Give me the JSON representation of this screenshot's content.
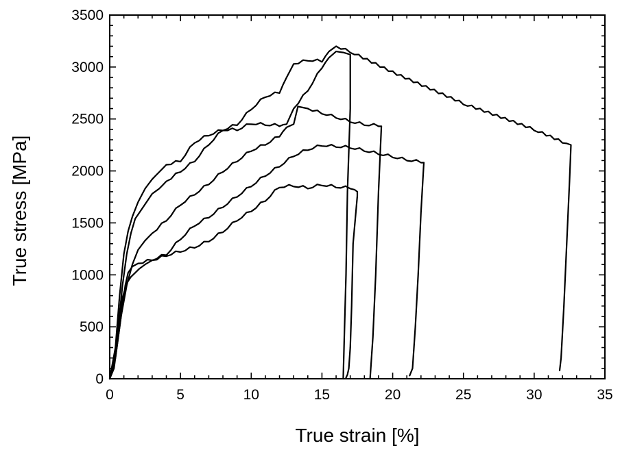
{
  "chart_data": {
    "type": "line",
    "title": "",
    "xlabel": "True strain [%]",
    "ylabel": "True stress [MPa]",
    "xlim": [
      0,
      35
    ],
    "ylim": [
      0,
      3500
    ],
    "xticks": [
      0,
      5,
      10,
      15,
      20,
      25,
      30,
      35
    ],
    "yticks": [
      0,
      500,
      1000,
      1500,
      2000,
      2500,
      3000,
      3500
    ],
    "x_tick_labels": [
      "0",
      "5",
      "10",
      "15",
      "20",
      "25",
      "30",
      "35"
    ],
    "y_tick_labels": [
      "0",
      "500",
      "1000",
      "1500",
      "2000",
      "2500",
      "3000",
      "3500"
    ],
    "x_minor_step": 1,
    "y_minor_step": 100,
    "grid": false,
    "legend": "none",
    "line_color": "#000000",
    "series": [
      {
        "x": [
          0,
          0.3,
          0.6,
          0.9,
          1.2,
          1.5,
          1.8,
          2.1,
          2.5,
          3,
          4,
          5,
          6,
          7,
          8,
          9,
          10,
          11,
          12,
          13,
          14,
          15,
          16,
          17,
          17.3,
          17.5,
          17.5,
          17.2,
          17.1,
          17.0,
          16.9,
          16.8,
          16.7
        ],
        "y": [
          0,
          150,
          500,
          780,
          920,
          980,
          1020,
          1060,
          1100,
          1140,
          1190,
          1230,
          1270,
          1330,
          1420,
          1530,
          1620,
          1720,
          1850,
          1860,
          1840,
          1870,
          1850,
          1840,
          1820,
          1800,
          1760,
          1300,
          700,
          300,
          100,
          40,
          10
        ]
      },
      {
        "x": [
          0,
          0.3,
          0.6,
          0.9,
          1.1,
          1.3,
          1.6,
          2,
          3,
          4,
          5,
          6,
          7,
          8,
          9,
          10,
          11,
          12,
          13,
          14,
          15,
          16,
          17,
          18,
          19,
          20,
          21,
          22,
          22.2,
          22.0,
          21.8,
          21.6,
          21.4,
          21.2
        ],
        "y": [
          0,
          100,
          400,
          700,
          900,
          1020,
          1080,
          1110,
          1150,
          1200,
          1350,
          1480,
          1560,
          1660,
          1760,
          1860,
          1960,
          2050,
          2150,
          2210,
          2250,
          2240,
          2230,
          2200,
          2170,
          2140,
          2110,
          2090,
          2080,
          1600,
          1000,
          500,
          100,
          30
        ]
      },
      {
        "x": [
          0,
          0.4,
          0.8,
          1.2,
          1.6,
          2,
          2.5,
          3,
          4,
          5,
          6,
          7,
          8,
          9,
          10,
          11,
          12,
          12.5,
          13,
          13.3,
          14,
          15,
          16,
          17,
          18,
          19,
          19.2,
          19.0,
          18.8,
          18.6,
          18.4
        ],
        "y": [
          0,
          200,
          600,
          900,
          1100,
          1240,
          1330,
          1400,
          1530,
          1680,
          1780,
          1880,
          2000,
          2100,
          2200,
          2260,
          2340,
          2420,
          2450,
          2620,
          2600,
          2560,
          2520,
          2480,
          2450,
          2440,
          2430,
          1800,
          1000,
          400,
          0
        ]
      },
      {
        "x": [
          0,
          0.4,
          0.7,
          1.0,
          1.3,
          1.6,
          2,
          2.5,
          3,
          3.5,
          4,
          5,
          6,
          7,
          8,
          9,
          10,
          11,
          12,
          12.5,
          13,
          14,
          15,
          15.5,
          16,
          16.5,
          17,
          17.0,
          16.8,
          16.7,
          16.6,
          16.5
        ],
        "y": [
          0,
          300,
          800,
          1200,
          1420,
          1560,
          1700,
          1830,
          1920,
          1990,
          2060,
          2100,
          2280,
          2350,
          2400,
          2400,
          2460,
          2450,
          2440,
          2450,
          2600,
          2780,
          3000,
          3090,
          3150,
          3140,
          3120,
          2600,
          1800,
          1000,
          500,
          0
        ]
      },
      {
        "x": [
          0,
          0.3,
          0.6,
          0.9,
          1.2,
          1.5,
          1.8,
          2.2,
          2.6,
          3,
          3.5,
          4,
          5,
          6,
          7,
          8,
          9,
          10,
          11,
          12,
          12.5,
          13,
          14,
          15,
          15.5,
          16,
          17,
          20,
          25,
          30,
          32,
          32.6,
          32.5,
          32.3,
          32.1,
          31.9,
          31.8
        ],
        "y": [
          0,
          150,
          500,
          900,
          1200,
          1400,
          1540,
          1620,
          1700,
          1780,
          1830,
          1900,
          2000,
          2100,
          2260,
          2400,
          2450,
          2600,
          2720,
          2760,
          2900,
          3030,
          3070,
          3060,
          3150,
          3200,
          3150,
          2950,
          2650,
          2400,
          2280,
          2250,
          1900,
          1300,
          700,
          200,
          80
        ]
      }
    ]
  }
}
